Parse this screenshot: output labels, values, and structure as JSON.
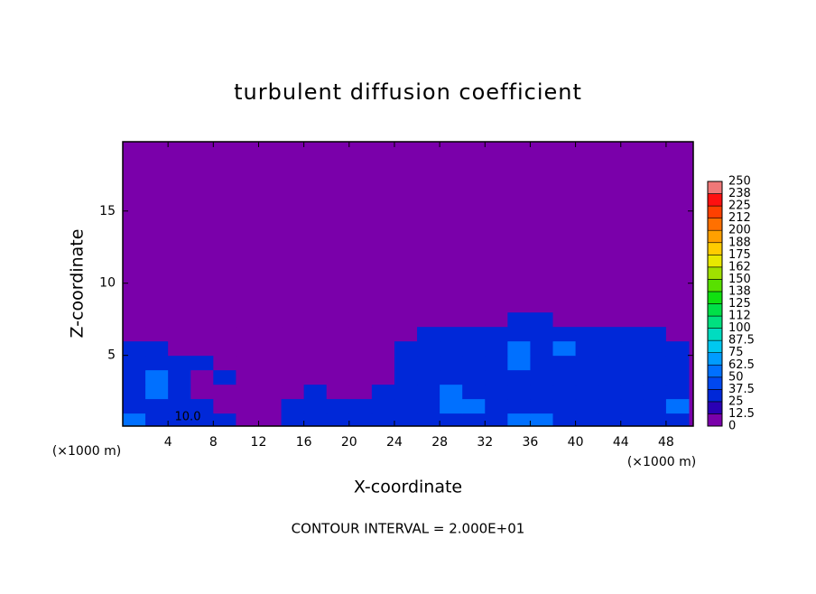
{
  "chart_data": {
    "type": "heatmap",
    "title": "turbulent diffusion coefficient",
    "x_label": "X-coordinate",
    "y_label": "Z-coordinate",
    "x_unit_left": "(×1000 m)",
    "x_unit_right": "(×1000 m)",
    "footer": "CONTOUR INTERVAL = 2.000E+01",
    "contour_label": "10.0",
    "xlim": [
      0,
      50.4
    ],
    "ylim": [
      0.1,
      19.8
    ],
    "xticks": [
      4,
      8,
      12,
      16,
      20,
      24,
      28,
      32,
      36,
      40,
      44,
      48
    ],
    "yticks": [
      5,
      10,
      15
    ],
    "field": {
      "x": [
        1,
        3,
        5,
        7,
        9,
        11,
        13,
        15,
        17,
        19,
        21,
        23,
        25,
        27,
        29,
        31,
        33,
        35,
        37,
        39,
        41,
        43,
        45,
        47,
        49
      ],
      "z": [
        0.5,
        1.5,
        2.5,
        3.5,
        4.5,
        5.5,
        6.5,
        7.5,
        8.5
      ],
      "values": [
        [
          50,
          37,
          37,
          30,
          25,
          12,
          5,
          30,
          37,
          37,
          30,
          37,
          37,
          37,
          37,
          37,
          37,
          50,
          50,
          37,
          37,
          37,
          37,
          37,
          37
        ],
        [
          37,
          37,
          30,
          25,
          12,
          5,
          5,
          25,
          30,
          25,
          25,
          30,
          37,
          37,
          50,
          50,
          37,
          37,
          37,
          37,
          37,
          37,
          37,
          37,
          50
        ],
        [
          37,
          50,
          37,
          12,
          5,
          5,
          5,
          5,
          25,
          5,
          12,
          25,
          30,
          37,
          50,
          37,
          37,
          37,
          30,
          37,
          37,
          37,
          25,
          37,
          37
        ],
        [
          37,
          50,
          25,
          12,
          25,
          5,
          5,
          5,
          5,
          5,
          5,
          12,
          25,
          37,
          37,
          37,
          30,
          37,
          37,
          37,
          25,
          30,
          37,
          37,
          37
        ],
        [
          37,
          37,
          30,
          25,
          12,
          5,
          5,
          5,
          5,
          5,
          5,
          5,
          25,
          37,
          30,
          37,
          37,
          50,
          37,
          37,
          37,
          25,
          30,
          37,
          37
        ],
        [
          25,
          30,
          12,
          5,
          5,
          5,
          5,
          5,
          5,
          5,
          5,
          5,
          25,
          30,
          37,
          37,
          37,
          50,
          37,
          50,
          37,
          37,
          30,
          37,
          37
        ],
        [
          12,
          5,
          5,
          5,
          5,
          5,
          5,
          5,
          5,
          5,
          5,
          5,
          12,
          25,
          25,
          25,
          30,
          37,
          37,
          30,
          25,
          25,
          25,
          25,
          12
        ],
        [
          0,
          0,
          0,
          0,
          0,
          0,
          0,
          0,
          0,
          0,
          0,
          0,
          0,
          0,
          0,
          0,
          12,
          25,
          25,
          12,
          0,
          0,
          0,
          0,
          0
        ],
        [
          0,
          0,
          0,
          0,
          0,
          0,
          0,
          0,
          0,
          0,
          0,
          0,
          0,
          0,
          0,
          0,
          0,
          12,
          12,
          0,
          0,
          0,
          0,
          0,
          0
        ]
      ]
    },
    "colorbar": {
      "levels": [
        0,
        12.5,
        25,
        37.5,
        50,
        62.5,
        75,
        87.5,
        100,
        {
          "value": 112.5,
          "label": "112"
        },
        125,
        {
          "value": 137.5,
          "label": "138"
        },
        150,
        {
          "value": 162.5,
          "label": "162"
        },
        175,
        {
          "value": 187.5,
          "label": "188"
        },
        200,
        {
          "value": 212.5,
          "label": "212"
        },
        225,
        {
          "value": 237.5,
          "label": "238"
        },
        250
      ],
      "colors": [
        "#7a00aa",
        "#2a00b4",
        "#0028d8",
        "#0048f0",
        "#0070ff",
        "#009cff",
        "#00c8f0",
        "#00dcc0",
        "#00e080",
        "#00e048",
        "#10e010",
        "#58e000",
        "#a0e000",
        "#e8e800",
        "#ffcc00",
        "#ffa000",
        "#ff7000",
        "#ff4000",
        "#ff1010",
        "#f07878"
      ]
    }
  }
}
